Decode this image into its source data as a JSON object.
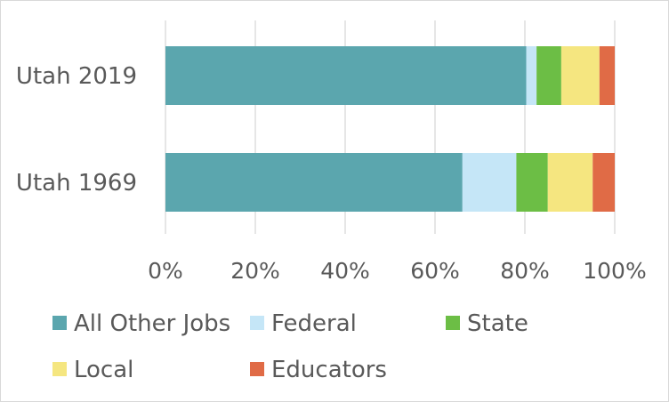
{
  "chart_data": {
    "type": "bar",
    "orientation": "horizontal",
    "stacked": "percent",
    "categories": [
      "Utah 2019",
      "Utah 1969"
    ],
    "series": [
      {
        "name": "All Other Jobs",
        "color": "#5ba6ae",
        "values": [
          80.3,
          66.1
        ]
      },
      {
        "name": "Federal",
        "color": "#c5e6f7",
        "values": [
          2.3,
          12.0
        ]
      },
      {
        "name": "State",
        "color": "#6cbe45",
        "values": [
          5.5,
          7.0
        ]
      },
      {
        "name": "Local",
        "color": "#f5e680",
        "values": [
          8.5,
          10.0
        ]
      },
      {
        "name": "Educators",
        "color": "#e06b46",
        "values": [
          3.4,
          4.9
        ]
      }
    ],
    "x_ticks": [
      "0%",
      "20%",
      "40%",
      "60%",
      "80%",
      "100%"
    ],
    "xlim": [
      0,
      100
    ],
    "grid": "vertical",
    "legend_position": "bottom"
  }
}
